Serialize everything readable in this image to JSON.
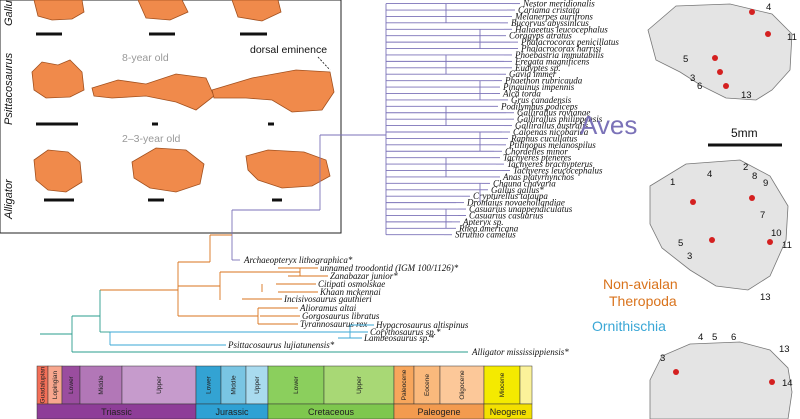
{
  "panel_rows": [
    "Gallus",
    "Psittacosaurus",
    "Alligator"
  ],
  "panel_notes": {
    "age_8": "8-year old",
    "age_2_3": "2–3-year old",
    "dorsal": "dorsal eminence"
  },
  "clades": {
    "aves": "Aves",
    "theropoda_1": "Non-avialan",
    "theropoda_2": "Theropoda",
    "ornithischia": "Ornithischia"
  },
  "colors": {
    "aves": "#7b72b8",
    "theropoda": "#d9731c",
    "ornithischia": "#3aa7d6",
    "root": "#2a9c8c",
    "specimen": "#f08a4b"
  },
  "scale_label": "5mm",
  "aves_taxa": [
    "Nestor meridionalis",
    "Cariama cristata",
    "Melanerpes aurifrons",
    "Bucorvus abyssinicus",
    "Haliaeetus leucocephalus",
    "Coragyps atratus",
    "Phalacrocorax penicillatus",
    "Phalacrocorax harrisi",
    "Phoebastria immutabilis",
    "Fregata magnificens",
    "Eudyptes sp.",
    "Gavia immer",
    "Phaethon rubricauda",
    "Pinguinus impennis",
    "Alca torda",
    "Grus canadensis",
    "Podilymbus podiceps",
    "Gallirallus rovianae",
    "Gallirallus philippensis",
    "Gallirallus australis",
    "Caloenas nicobarica",
    "Raphus cucullatus",
    "Ptilinopus melanospilus",
    "Chordeiles minor",
    "Tachyeres pteneres",
    "Tachyeres brachypterus",
    "Tachyeres leucocephalus",
    "Anas platyrhynchos",
    "Chauna chavaria",
    "Gallus gallus*",
    "Crypturellus tataupa",
    "Dromaius novaehollandiae",
    "Casuarius unappendiculatus",
    "Casuarius casuarius",
    "Apteryx sp.",
    "Rhea americana",
    "Struthio camelus"
  ],
  "archaeopteryx": "Archaeopteryx lithographica*",
  "theropod_taxa": [
    "unnamed troodontid (IGM 100/1126)*",
    "Zanabazar junior*",
    "Citipati osmolskae",
    "Khaan mckennai",
    "Incisivosaurus gauthieri",
    "Alioramus altai",
    "Gorgosaurus libratus",
    "Tyrannosaurus rex"
  ],
  "ornithischian_taxa": [
    "Hypacrosaurus altispinus",
    "Corythosaurus sp.*",
    "Lambeosaurus sp.*",
    "Psittacosaurus lujiatunensis*"
  ],
  "alligator_taxon": "Alligator mississippiensis*",
  "timescale": {
    "stages": [
      {
        "label": "Guadalupian",
        "color": "#f36f58"
      },
      {
        "label": "Lopingian",
        "color": "#f7a78e"
      },
      {
        "label": "Lower",
        "color": "#9a4d9f"
      },
      {
        "label": "Middle",
        "color": "#b277b7"
      },
      {
        "label": "Upper",
        "color": "#c69bcc"
      },
      {
        "label": "Lower",
        "color": "#33a3d3"
      },
      {
        "label": "Middle",
        "color": "#79c5e3"
      },
      {
        "label": "Upper",
        "color": "#a9dbef"
      },
      {
        "label": "Lower",
        "color": "#8bcf5d"
      },
      {
        "label": "Upper",
        "color": "#a8d875"
      },
      {
        "label": "Paleocene",
        "color": "#f7a65c"
      },
      {
        "label": "Eocene",
        "color": "#fab97c"
      },
      {
        "label": "Oligocene",
        "color": "#fcc899"
      },
      {
        "label": "Miocene",
        "color": "#f4ea00"
      },
      {
        "label": "",
        "color": "#fbf29a"
      }
    ],
    "periods": [
      {
        "label": "Triassic",
        "color": "#8e3d98"
      },
      {
        "label": "Jurassic",
        "color": "#2ea1d4"
      },
      {
        "label": "Cretaceous",
        "color": "#7ec74e"
      },
      {
        "label": "Paleogene",
        "color": "#f39b4f"
      },
      {
        "label": "Neogene",
        "color": "#f3e000"
      }
    ]
  },
  "landmarks_top": [
    "4",
    "11",
    "5",
    "3",
    "6",
    "13"
  ],
  "landmarks_mid": [
    "1",
    "4",
    "2",
    "8",
    "9",
    "7",
    "5",
    "3",
    "10",
    "11",
    "13"
  ],
  "landmarks_bottom": [
    "3",
    "4",
    "5",
    "6",
    "13",
    "14"
  ]
}
